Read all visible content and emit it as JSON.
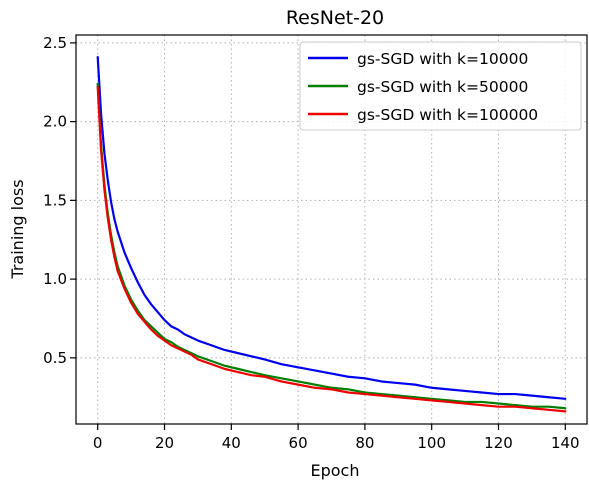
{
  "chart_data": {
    "type": "line",
    "title": "ResNet-20",
    "xlabel": "Epoch",
    "ylabel": "Training loss",
    "xlim": [
      -6.5,
      146.5
    ],
    "ylim": [
      0.08,
      2.55
    ],
    "xticks": [
      0,
      20,
      40,
      60,
      80,
      100,
      120,
      140
    ],
    "yticks": [
      0.5,
      1.0,
      1.5,
      2.0,
      2.5
    ],
    "ytick_labels": [
      "0.5",
      "1.0",
      "1.5",
      "2.0",
      "2.5"
    ],
    "grid": true,
    "legend_position": "top-right",
    "series": [
      {
        "name": "gs-SGD with k=10000",
        "color": "#0000ee",
        "x": [
          0,
          1,
          2,
          3,
          4,
          5,
          6,
          8,
          10,
          12,
          14,
          16,
          18,
          20,
          22,
          24,
          26,
          28,
          30,
          34,
          38,
          42,
          46,
          50,
          55,
          60,
          65,
          70,
          75,
          80,
          85,
          90,
          95,
          100,
          105,
          110,
          115,
          120,
          125,
          130,
          135,
          140
        ],
        "y": [
          2.41,
          2.05,
          1.8,
          1.63,
          1.49,
          1.38,
          1.3,
          1.17,
          1.07,
          0.98,
          0.9,
          0.84,
          0.79,
          0.74,
          0.7,
          0.68,
          0.65,
          0.63,
          0.61,
          0.58,
          0.55,
          0.53,
          0.51,
          0.49,
          0.46,
          0.44,
          0.42,
          0.4,
          0.38,
          0.37,
          0.35,
          0.34,
          0.33,
          0.31,
          0.3,
          0.29,
          0.28,
          0.27,
          0.27,
          0.26,
          0.25,
          0.24
        ]
      },
      {
        "name": "gs-SGD with k=50000",
        "color": "#008000",
        "x": [
          0,
          1,
          2,
          3,
          4,
          5,
          6,
          8,
          10,
          12,
          14,
          16,
          18,
          20,
          22,
          24,
          26,
          28,
          30,
          34,
          38,
          42,
          46,
          50,
          55,
          60,
          65,
          70,
          75,
          80,
          85,
          90,
          95,
          100,
          105,
          110,
          115,
          120,
          125,
          130,
          135,
          140
        ],
        "y": [
          2.24,
          1.85,
          1.6,
          1.42,
          1.28,
          1.17,
          1.08,
          0.96,
          0.87,
          0.8,
          0.74,
          0.7,
          0.66,
          0.62,
          0.6,
          0.57,
          0.55,
          0.53,
          0.51,
          0.48,
          0.45,
          0.43,
          0.41,
          0.39,
          0.37,
          0.35,
          0.33,
          0.31,
          0.3,
          0.28,
          0.27,
          0.26,
          0.25,
          0.24,
          0.23,
          0.22,
          0.22,
          0.21,
          0.2,
          0.19,
          0.19,
          0.18
        ]
      },
      {
        "name": "gs-SGD with k=100000",
        "color": "#ee0000",
        "x": [
          0,
          1,
          2,
          3,
          4,
          5,
          6,
          8,
          10,
          12,
          14,
          16,
          18,
          20,
          22,
          24,
          26,
          28,
          30,
          34,
          38,
          42,
          46,
          50,
          55,
          60,
          65,
          70,
          75,
          80,
          85,
          90,
          95,
          100,
          105,
          110,
          115,
          120,
          125,
          130,
          135,
          140
        ],
        "y": [
          2.22,
          1.82,
          1.57,
          1.39,
          1.25,
          1.14,
          1.05,
          0.94,
          0.85,
          0.78,
          0.73,
          0.68,
          0.64,
          0.61,
          0.58,
          0.56,
          0.54,
          0.52,
          0.49,
          0.46,
          0.43,
          0.41,
          0.39,
          0.38,
          0.35,
          0.33,
          0.31,
          0.3,
          0.28,
          0.27,
          0.26,
          0.25,
          0.24,
          0.23,
          0.22,
          0.21,
          0.2,
          0.19,
          0.19,
          0.18,
          0.17,
          0.16
        ]
      }
    ]
  }
}
